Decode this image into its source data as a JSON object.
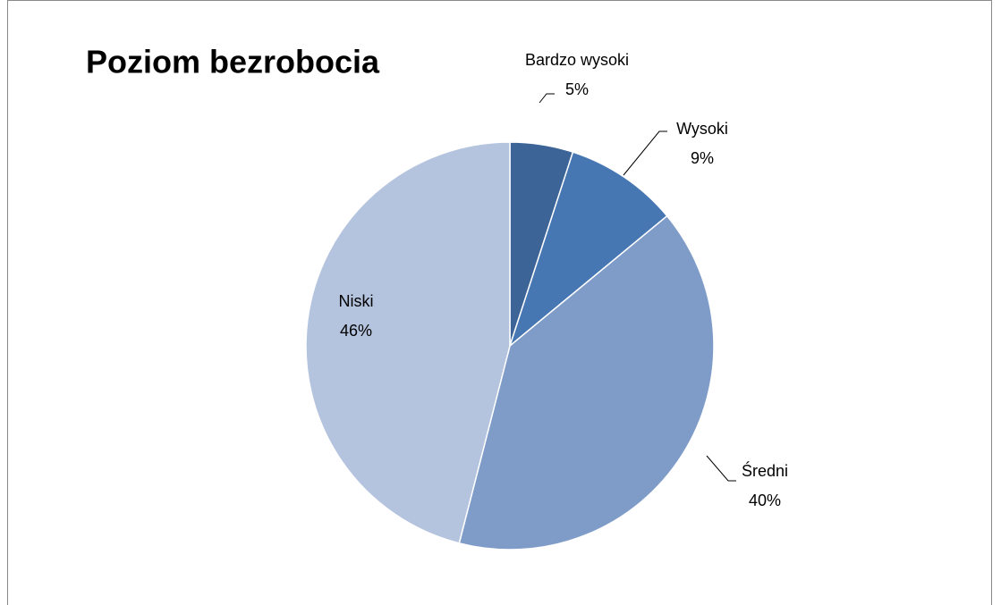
{
  "chart_data": {
    "type": "pie",
    "title": "Poziom bezrobocia",
    "categories": [
      "Bardzo wysoki",
      "Wysoki",
      "Średni",
      "Niski"
    ],
    "values": [
      5,
      9,
      40,
      46
    ],
    "value_labels": [
      "5%",
      "9%",
      "40%",
      "46%"
    ],
    "colors": [
      "#3d6496",
      "#4777b2",
      "#7f9cc9",
      "#b4c3de"
    ]
  }
}
